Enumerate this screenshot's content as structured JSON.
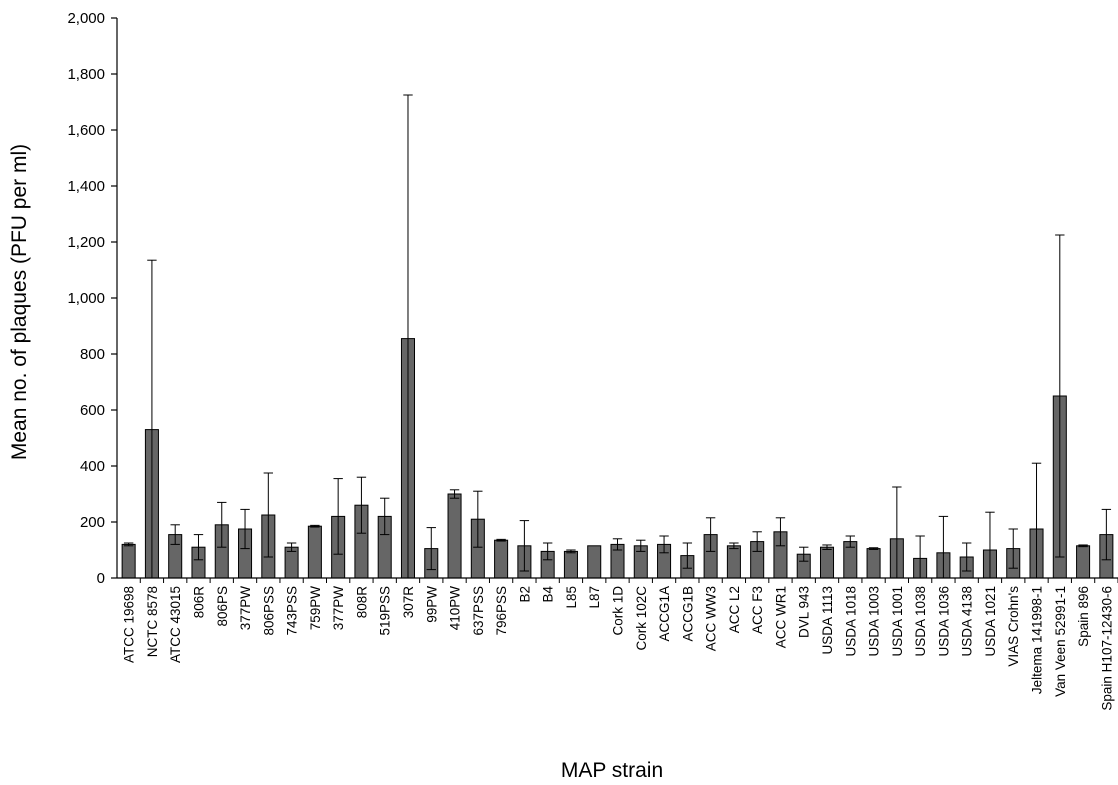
{
  "chart_data": {
    "type": "bar",
    "title": "",
    "xlabel": "MAP strain",
    "ylabel": "Mean no. of plaques (PFU per ml)",
    "ylim": [
      0,
      2000
    ],
    "yticks": [
      0,
      200,
      400,
      600,
      800,
      1000,
      1200,
      1400,
      1600,
      1800,
      2000
    ],
    "ytick_labels": [
      "0",
      "200",
      "400",
      "600",
      "800",
      "1,000",
      "1,200",
      "1,400",
      "1,600",
      "1,800",
      "2,000"
    ],
    "grid": false,
    "legend": "none",
    "bar_color": "#666666",
    "categories": [
      "ATCC 19698",
      "NCTC 8578",
      "ATCC 43015",
      "806R",
      "806PS",
      "377PW",
      "806PSS",
      "743PSS",
      "759PW",
      "377PW",
      "808R",
      "519PSS",
      "307R",
      "99PW",
      "410PW",
      "637PSS",
      "796PSS",
      "B2",
      "B4",
      "L85",
      "L87",
      "Cork 1D",
      "Cork 102C",
      "ACCG1A",
      "ACCG1B",
      "ACC WW3",
      "ACC L2",
      "ACC F3",
      "ACC WR1",
      "DVL 943",
      "USDA 1113",
      "USDA 1018",
      "USDA 1003",
      "USDA 1001",
      "USDA 1038",
      "USDA 1036",
      "USDA 4138",
      "USDA 1021",
      "VIAS Crohn's",
      "Jeltema 141998-1",
      "Van Veen 52991-1",
      "Spain 896",
      "Spain H107-12430-6"
    ],
    "values": [
      120,
      530,
      155,
      110,
      190,
      175,
      225,
      110,
      185,
      220,
      260,
      220,
      855,
      105,
      300,
      210,
      135,
      115,
      95,
      95,
      115,
      120,
      115,
      120,
      80,
      155,
      115,
      130,
      165,
      85,
      110,
      130,
      105,
      140,
      70,
      90,
      75,
      100,
      105,
      175,
      650,
      115,
      155
    ],
    "errors": [
      5,
      605,
      35,
      45,
      80,
      70,
      150,
      15,
      3,
      135,
      100,
      65,
      870,
      75,
      15,
      100,
      3,
      90,
      30,
      5,
      0,
      20,
      20,
      30,
      45,
      60,
      10,
      35,
      50,
      25,
      8,
      20,
      3,
      185,
      80,
      130,
      50,
      135,
      70,
      235,
      575,
      3,
      90
    ]
  }
}
